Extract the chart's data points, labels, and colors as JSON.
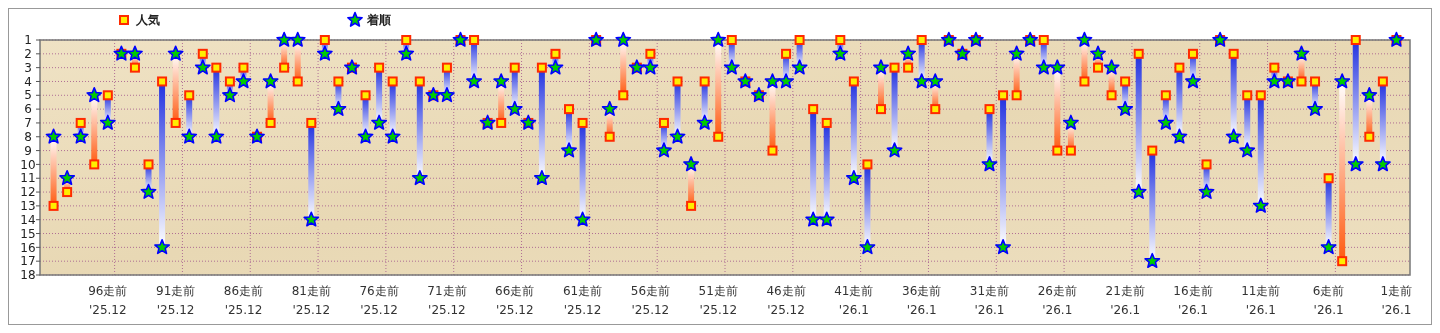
{
  "chart_data": {
    "type": "scatter",
    "categories": [
      null,
      null,
      null,
      null,
      "96走前\n'25.12",
      null,
      null,
      null,
      null,
      "91走前\n'25.12",
      null,
      null,
      null,
      null,
      "86走前\n'25.12",
      null,
      null,
      null,
      null,
      "81走前\n'25.12",
      null,
      null,
      null,
      null,
      "76走前\n'25.12",
      null,
      null,
      null,
      null,
      "71走前\n'25.12",
      null,
      null,
      null,
      null,
      "66走前\n'25.12",
      null,
      null,
      null,
      null,
      "61走前\n'25.12",
      null,
      null,
      null,
      null,
      "56走前\n'25.12",
      null,
      null,
      null,
      null,
      "51走前\n'25.12",
      null,
      null,
      null,
      null,
      "46走前\n'25.12",
      null,
      null,
      null,
      null,
      "41走前\n'26.1",
      null,
      null,
      null,
      null,
      "36走前\n'26.1",
      null,
      null,
      null,
      null,
      "31走前\n'26.1",
      null,
      null,
      null,
      null,
      "26走前\n'26.1",
      null,
      null,
      null,
      null,
      "21走前\n'26.1",
      null,
      null,
      null,
      null,
      "16走前\n'26.1",
      null,
      null,
      null,
      null,
      "11走前\n'26.1",
      null,
      null,
      null,
      null,
      "6走前\n'26.1",
      null,
      null,
      null,
      null,
      "1走前\n'26.1"
    ],
    "series": [
      {
        "name": "人気",
        "color": "#ff2a00",
        "marker": "square",
        "values": [
          13,
          12,
          7,
          10,
          5,
          2,
          3,
          10,
          4,
          7,
          5,
          2,
          3,
          4,
          3,
          8,
          7,
          3,
          4,
          7,
          1,
          4,
          3,
          5,
          3,
          4,
          1,
          4,
          5,
          3,
          1,
          1,
          7,
          7,
          3,
          7,
          3,
          2,
          6,
          7,
          1,
          8,
          5,
          3,
          2,
          7,
          4,
          13,
          4,
          8,
          1,
          4,
          5,
          9,
          2,
          1,
          6,
          7,
          1,
          4,
          10,
          6,
          3,
          3,
          1,
          6,
          1,
          2,
          1,
          6,
          5,
          5,
          1,
          1,
          9,
          9,
          4,
          3,
          5,
          4,
          2,
          9,
          5,
          3,
          2,
          10,
          1,
          2,
          5,
          5,
          3,
          4,
          4,
          4,
          11,
          17,
          1,
          8,
          4,
          1
        ]
      },
      {
        "name": "着順",
        "color": "#0000ff",
        "marker": "star",
        "values": [
          8,
          11,
          8,
          5,
          7,
          2,
          2,
          12,
          16,
          2,
          8,
          3,
          8,
          5,
          4,
          8,
          4,
          1,
          1,
          14,
          2,
          6,
          3,
          8,
          7,
          8,
          2,
          11,
          5,
          5,
          1,
          4,
          7,
          4,
          6,
          7,
          11,
          3,
          9,
          14,
          1,
          6,
          1,
          3,
          3,
          9,
          8,
          10,
          7,
          1,
          3,
          4,
          5,
          4,
          4,
          3,
          14,
          14,
          2,
          11,
          16,
          3,
          9,
          2,
          4,
          4,
          1,
          2,
          1,
          10,
          16,
          2,
          1,
          3,
          3,
          7,
          1,
          2,
          3,
          6,
          12,
          17,
          7,
          8,
          4,
          12,
          1,
          8,
          9,
          13,
          4,
          4,
          2,
          6,
          16,
          4,
          10,
          5,
          10,
          1
        ]
      }
    ],
    "ylim": [
      18,
      1
    ],
    "yticks": [
      1,
      2,
      3,
      4,
      5,
      6,
      7,
      8,
      9,
      10,
      11,
      12,
      13,
      14,
      15,
      16,
      17,
      18
    ],
    "grid": true,
    "legend": "top left"
  }
}
